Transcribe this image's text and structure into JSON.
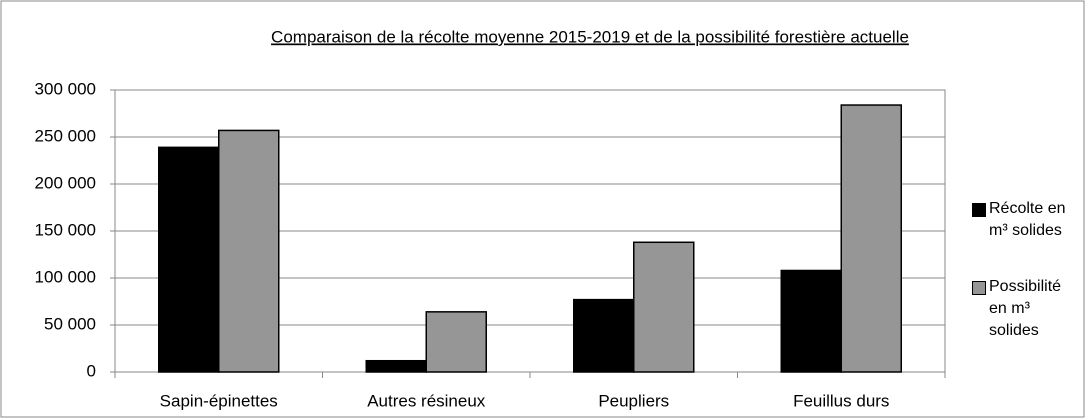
{
  "chart_data": {
    "type": "bar",
    "title": "Comparaison de la récolte moyenne 2015-2019 et de la possibilité forestière actuelle",
    "categories": [
      "Sapin-épinettes",
      "Autres résineux",
      "Peupliers",
      "Feuillus durs"
    ],
    "series": [
      {
        "name": "Récolte en m³ solides",
        "color": "#000000",
        "values": [
          239000,
          12000,
          77000,
          108000
        ]
      },
      {
        "name": "Possibilité en m³ solides",
        "color": "#969696",
        "values": [
          257000,
          64000,
          138000,
          284000
        ]
      }
    ],
    "ylim": [
      0,
      300000
    ],
    "yticks": [
      {
        "value": 0,
        "label": "0"
      },
      {
        "value": 50000,
        "label": "50 000"
      },
      {
        "value": 100000,
        "label": "100 000"
      },
      {
        "value": 150000,
        "label": "150 000"
      },
      {
        "value": 200000,
        "label": "200 000"
      },
      {
        "value": 250000,
        "label": "250 000"
      },
      {
        "value": 300000,
        "label": "300 000"
      }
    ],
    "grid": true,
    "legend": "right"
  }
}
